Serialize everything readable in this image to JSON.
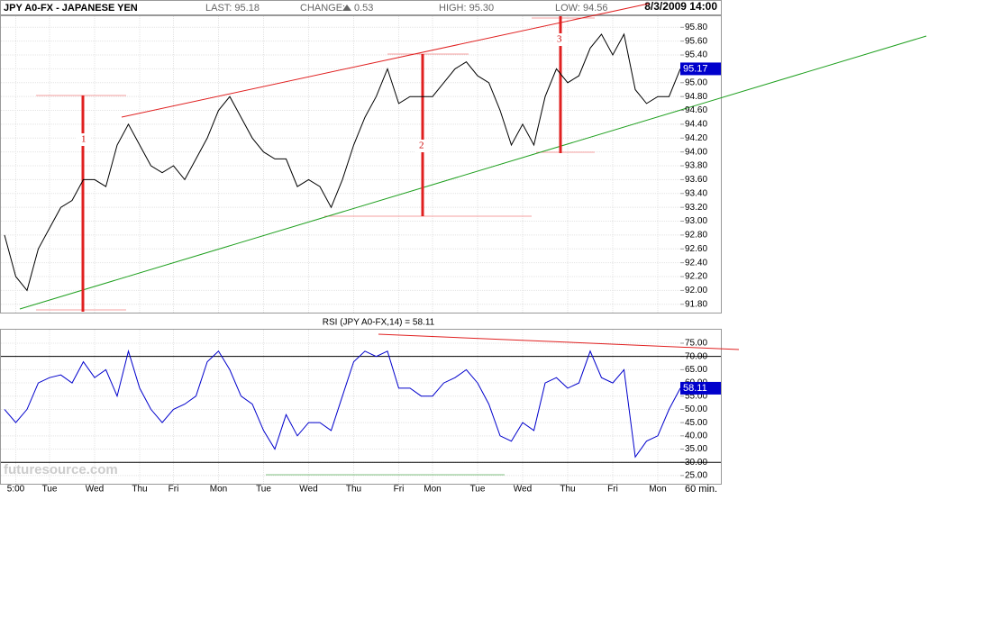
{
  "header": {
    "symbol": "JPY A0-FX - JAPANESE YEN",
    "last": "LAST: 95.18",
    "change_label": "CHANGE:",
    "change": "0.53",
    "high": "HIGH: 95.30",
    "low": "LOW: 94.56",
    "datetime": "8/3/2009 14:00",
    "watermark": "futuresource.com",
    "interval": "60 min."
  },
  "chart_data": [
    {
      "type": "line",
      "last_label": "95.17",
      "annotations": [
        "1",
        "2",
        "3"
      ],
      "ylim": [
        91.68,
        95.96
      ],
      "yticks": [
        {
          "value": 91.8,
          "label": "91.80"
        },
        {
          "value": 92,
          "label": "92.00"
        },
        {
          "value": 92.2,
          "label": "92.20"
        },
        {
          "value": 92.4,
          "label": "92.40"
        },
        {
          "value": 92.6,
          "label": "92.60"
        },
        {
          "value": 92.8,
          "label": "92.80"
        },
        {
          "value": 93,
          "label": "93.00"
        },
        {
          "value": 93.2,
          "label": "93.20"
        },
        {
          "value": 93.4,
          "label": "93.40"
        },
        {
          "value": 93.6,
          "label": "93.60"
        },
        {
          "value": 93.8,
          "label": "93.80"
        },
        {
          "value": 94,
          "label": "94.00"
        },
        {
          "value": 94.2,
          "label": "94.20"
        },
        {
          "value": 94.4,
          "label": "94.40"
        },
        {
          "value": 94.6,
          "label": "94.60"
        },
        {
          "value": 94.8,
          "label": "94.80"
        },
        {
          "value": 95,
          "label": "95.00"
        },
        {
          "value": 95.2,
          "label": "95.20"
        },
        {
          "value": 95.4,
          "label": "95.40"
        },
        {
          "value": 95.6,
          "label": "95.60"
        },
        {
          "value": 95.8,
          "label": "95.80"
        }
      ],
      "grid": true,
      "series": [
        {
          "name": "JPY A0-FX",
          "color": "#000000",
          "values": [
            92.8,
            92.2,
            92.0,
            92.6,
            92.9,
            93.2,
            93.3,
            93.6,
            93.6,
            93.5,
            94.1,
            94.4,
            94.1,
            93.8,
            93.7,
            93.8,
            93.6,
            93.9,
            94.2,
            94.6,
            94.8,
            94.5,
            94.2,
            94.0,
            93.9,
            93.9,
            93.5,
            93.6,
            93.5,
            93.2,
            93.6,
            94.1,
            94.5,
            94.8,
            95.2,
            94.7,
            94.8,
            94.8,
            94.8,
            95.0,
            95.2,
            95.3,
            95.1,
            95.0,
            94.6,
            94.1,
            94.4,
            94.1,
            94.8,
            95.2,
            95.0,
            95.1,
            95.5,
            95.7,
            95.4,
            95.7,
            94.9,
            94.7,
            94.8,
            94.8,
            95.2
          ]
        }
      ]
    },
    {
      "type": "line",
      "title": "RSI (JPY A0-FX,14) = 58.11",
      "last_label": "58.11",
      "categories": [
        null,
        "5:00",
        null,
        null,
        "Tue",
        null,
        null,
        null,
        "Wed",
        null,
        null,
        null,
        "Thu",
        null,
        null,
        "Fri",
        null,
        null,
        null,
        "Mon",
        null,
        null,
        null,
        "Tue",
        null,
        null,
        null,
        "Wed",
        null,
        null,
        null,
        "Thu",
        null,
        null,
        null,
        "Fri",
        null,
        null,
        "Mon",
        null,
        null,
        null,
        "Tue",
        null,
        null,
        null,
        "Wed",
        null,
        null,
        null,
        "Thu",
        null,
        null,
        null,
        "Fri",
        null,
        null,
        null,
        "Mon",
        null,
        null
      ],
      "ylim": [
        21.9,
        80.1
      ],
      "yticks": [
        {
          "value": 25,
          "label": "25.00"
        },
        {
          "value": 30,
          "label": "30.00"
        },
        {
          "value": 35,
          "label": "35.00"
        },
        {
          "value": 40,
          "label": "40.00"
        },
        {
          "value": 45,
          "label": "45.00"
        },
        {
          "value": 50,
          "label": "50.00"
        },
        {
          "value": 55,
          "label": "55.00"
        },
        {
          "value": 60,
          "label": "60.00"
        },
        {
          "value": 65,
          "label": "65.00"
        },
        {
          "value": 70,
          "label": "70.00"
        },
        {
          "value": 75,
          "label": "75.00"
        }
      ],
      "levels": [
        70,
        30
      ],
      "grid": true,
      "series": [
        {
          "name": "RSI",
          "color": "#0000cc",
          "values": [
            50,
            45,
            50,
            60,
            62,
            63,
            60,
            68,
            62,
            65,
            55,
            72,
            58,
            50,
            45,
            50,
            52,
            55,
            68,
            72,
            65,
            55,
            52,
            42,
            35,
            48,
            40,
            45,
            45,
            42,
            55,
            68,
            72,
            70,
            72,
            58,
            58,
            55,
            55,
            60,
            62,
            65,
            60,
            52,
            40,
            38,
            45,
            42,
            60,
            62,
            58,
            60,
            72,
            62,
            60,
            65,
            32,
            38,
            40,
            50,
            58
          ]
        }
      ]
    }
  ]
}
